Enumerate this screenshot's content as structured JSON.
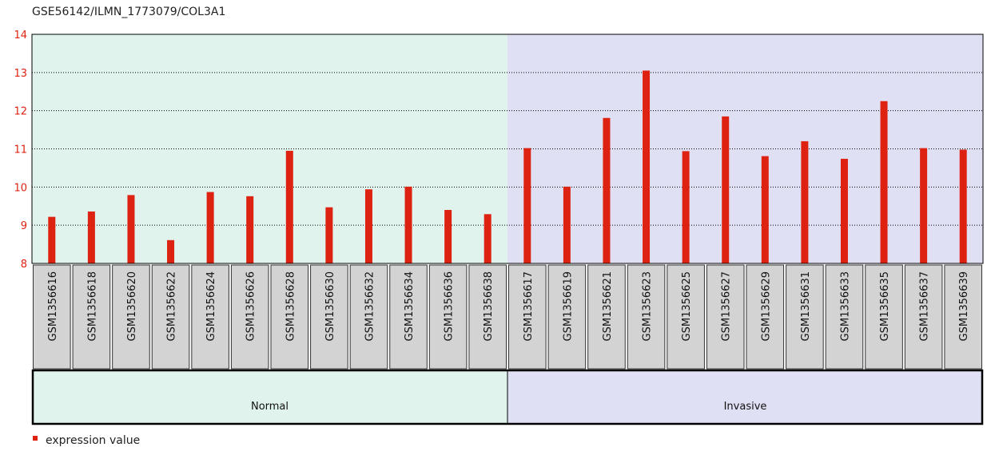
{
  "chart_data": {
    "type": "bar",
    "title": "GSE56142/ILMN_1773079/COL3A1",
    "ylim": [
      8,
      14
    ],
    "yticks": [
      8,
      9,
      10,
      11,
      12,
      13,
      14
    ],
    "grid": true,
    "legend_position": "bottom-left",
    "series": [
      {
        "name": "expression value",
        "color": "#dd2211",
        "values": [
          9.22,
          9.36,
          9.79,
          8.61,
          9.87,
          9.76,
          10.95,
          9.47,
          9.94,
          10.01,
          9.4,
          9.29,
          11.02,
          10.01,
          11.81,
          13.05,
          10.94,
          11.85,
          10.81,
          11.2,
          10.74,
          12.25,
          11.02,
          10.98
        ]
      }
    ],
    "categories": [
      "GSM1356616",
      "GSM1356618",
      "GSM1356620",
      "GSM1356622",
      "GSM1356624",
      "GSM1356626",
      "GSM1356628",
      "GSM1356630",
      "GSM1356632",
      "GSM1356634",
      "GSM1356636",
      "GSM1356638",
      "GSM1356617",
      "GSM1356619",
      "GSM1356621",
      "GSM1356623",
      "GSM1356625",
      "GSM1356627",
      "GSM1356629",
      "GSM1356631",
      "GSM1356633",
      "GSM1356635",
      "GSM1356637",
      "GSM1356639"
    ],
    "groups": [
      {
        "label": "Normal",
        "start": 0,
        "count": 12,
        "color": "#e0f3ec"
      },
      {
        "label": "Invasive",
        "start": 12,
        "count": 12,
        "color": "#e0e0f5"
      }
    ]
  },
  "colors": {
    "axis_text": "#dd2211",
    "bar": "#dd2211",
    "grid": "#000000",
    "label_box": "#d3d3d3"
  }
}
